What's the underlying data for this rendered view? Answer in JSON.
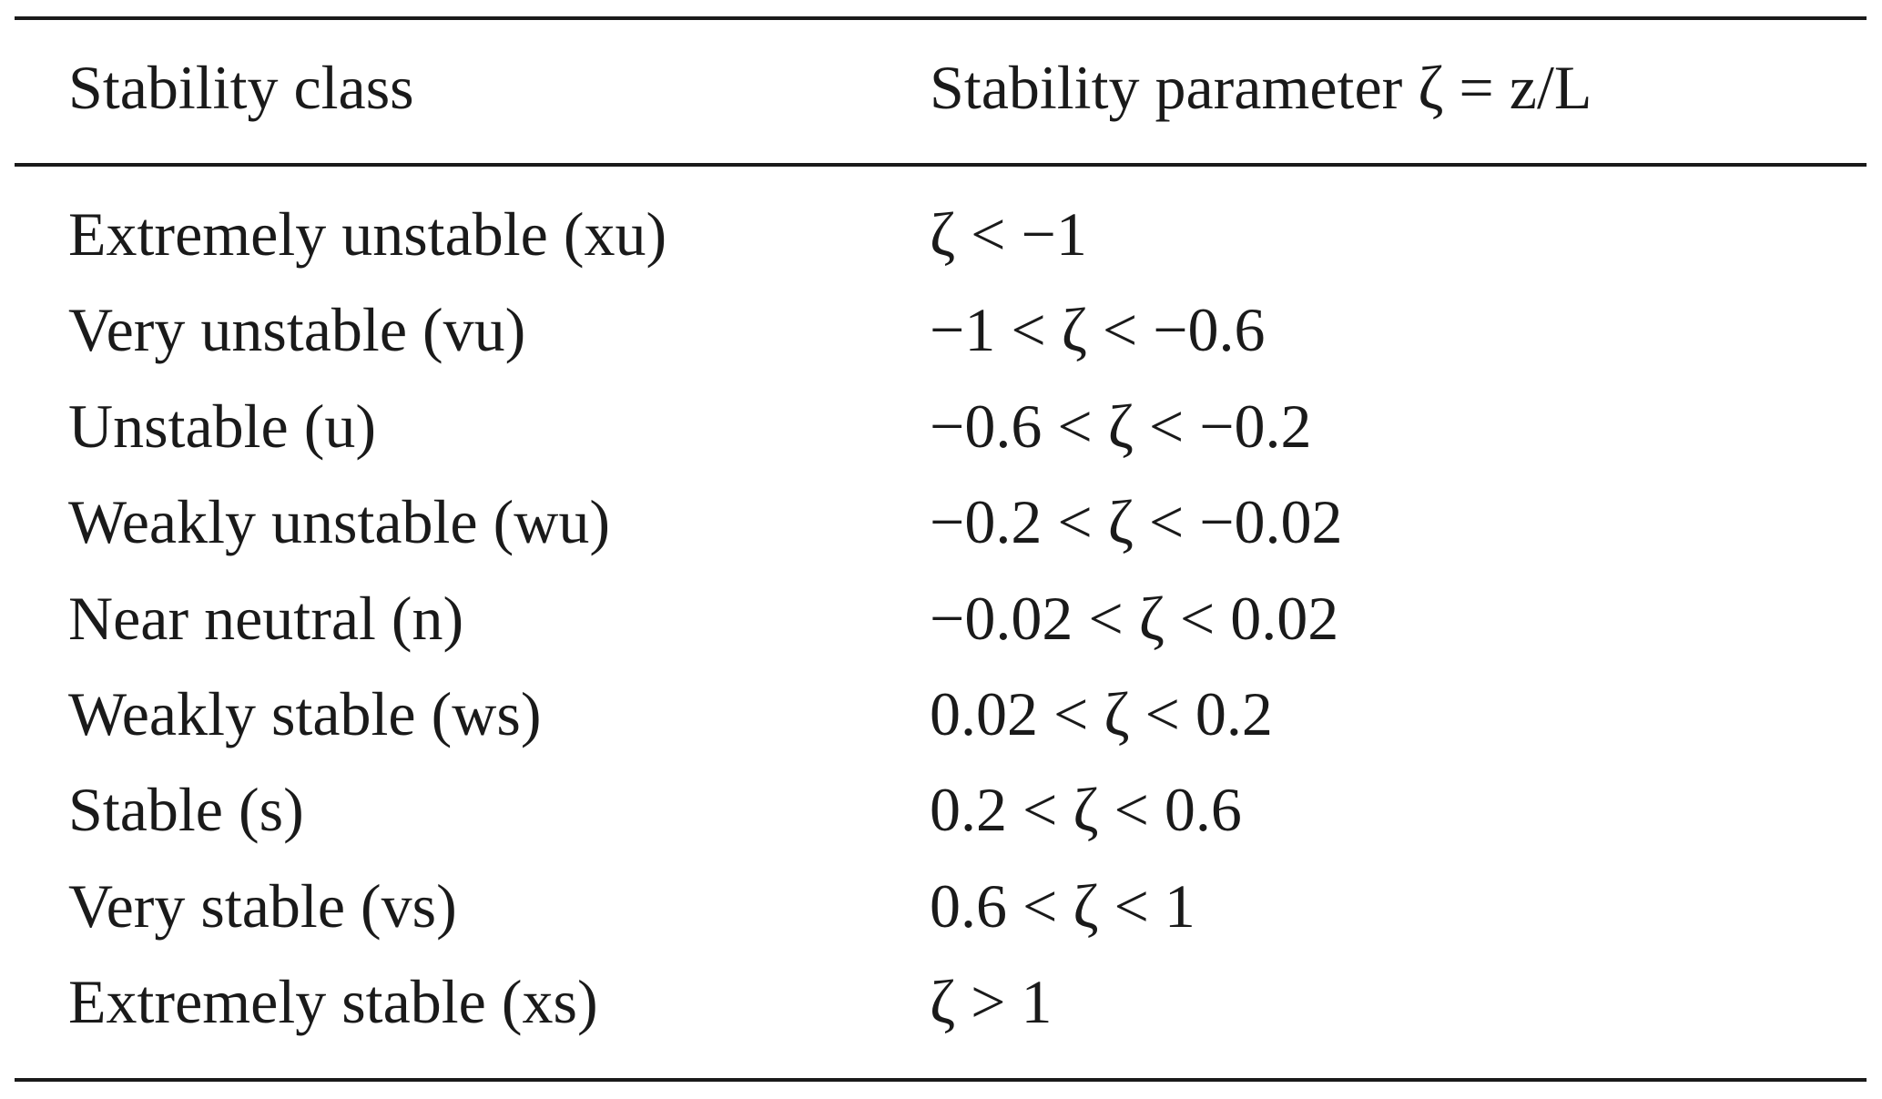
{
  "table": {
    "header": [
      "Stability class",
      "Stability parameter ζ = z/L"
    ],
    "rows": [
      [
        "Extremely unstable (xu)",
        "ζ < −1"
      ],
      [
        "Very unstable (vu)",
        "−1 < ζ < −0.6"
      ],
      [
        "Unstable (u)",
        "−0.6 < ζ < −0.2"
      ],
      [
        "Weakly unstable (wu)",
        "−0.2 < ζ < −0.02"
      ],
      [
        "Near neutral (n)",
        "−0.02 < ζ < 0.02"
      ],
      [
        "Weakly stable (ws)",
        "0.02 < ζ < 0.2"
      ],
      [
        "Stable (s)",
        "0.2 < ζ < 0.6"
      ],
      [
        "Very stable (vs)",
        "0.6 < ζ < 1"
      ],
      [
        "Extremely stable (xs)",
        "ζ > 1"
      ]
    ]
  }
}
